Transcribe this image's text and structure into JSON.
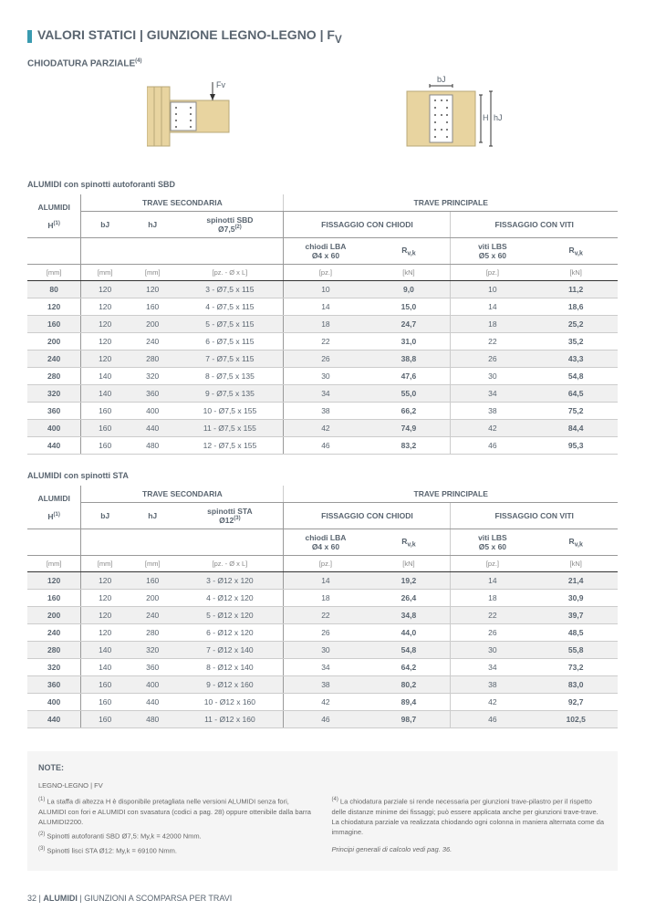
{
  "header": {
    "title": "VALORI STATICI | GIUNZIONE LEGNO-LEGNO | F",
    "title_sub": "V",
    "subtitle": "CHIODATURA PARZIALE",
    "subtitle_sup": "(4)"
  },
  "diagrams": {
    "left": {
      "fv_label": "Fv"
    },
    "right": {
      "bj_label": "bJ",
      "h_label": "H",
      "hj_label": "hJ"
    }
  },
  "table1": {
    "title": "ALUMIDI con spinotti autoforanti SBD",
    "headers": {
      "alumidi": "ALUMIDI",
      "trave_sec": "TRAVE SECONDARIA",
      "trave_prin": "TRAVE PRINCIPALE",
      "fiss_chiodi": "FISSAGGIO CON CHIODI",
      "fiss_viti": "FISSAGGIO CON VITI",
      "h": "H",
      "h_sup": "(1)",
      "bj": "bJ",
      "hj": "hJ",
      "spinotti": "spinotti SBD",
      "spinotti_dim": "Ø7,5",
      "spinotti_sup": "(2)",
      "chiodi": "chiodi LBA",
      "chiodi_dim": "Ø4 x 60",
      "rvk1": "R",
      "rvk1_sub": "v,k",
      "viti": "viti LBS",
      "viti_dim": "Ø5 x 60",
      "rvk2": "R",
      "rvk2_sub": "v,k",
      "u_mm": "[mm]",
      "u_pz_ol": "[pz. - Ø x L]",
      "u_pz": "[pz.]",
      "u_kn": "[kN]"
    },
    "rows": [
      {
        "h": "80",
        "bj": "120",
        "hj": "120",
        "sp": "3 - Ø7,5 x 115",
        "ch": "10",
        "r1": "9,0",
        "v": "10",
        "r2": "11,2",
        "alt": true
      },
      {
        "h": "120",
        "bj": "120",
        "hj": "160",
        "sp": "4 - Ø7,5 x 115",
        "ch": "14",
        "r1": "15,0",
        "v": "14",
        "r2": "18,6",
        "alt": false
      },
      {
        "h": "160",
        "bj": "120",
        "hj": "200",
        "sp": "5 - Ø7,5 x 115",
        "ch": "18",
        "r1": "24,7",
        "v": "18",
        "r2": "25,2",
        "alt": true
      },
      {
        "h": "200",
        "bj": "120",
        "hj": "240",
        "sp": "6 - Ø7,5 x 115",
        "ch": "22",
        "r1": "31,0",
        "v": "22",
        "r2": "35,2",
        "alt": false
      },
      {
        "h": "240",
        "bj": "120",
        "hj": "280",
        "sp": "7 - Ø7,5 x 115",
        "ch": "26",
        "r1": "38,8",
        "v": "26",
        "r2": "43,3",
        "alt": true
      },
      {
        "h": "280",
        "bj": "140",
        "hj": "320",
        "sp": "8 - Ø7,5 x 135",
        "ch": "30",
        "r1": "47,6",
        "v": "30",
        "r2": "54,8",
        "alt": false
      },
      {
        "h": "320",
        "bj": "140",
        "hj": "360",
        "sp": "9 - Ø7,5 x 135",
        "ch": "34",
        "r1": "55,0",
        "v": "34",
        "r2": "64,5",
        "alt": true
      },
      {
        "h": "360",
        "bj": "160",
        "hj": "400",
        "sp": "10 - Ø7,5 x 155",
        "ch": "38",
        "r1": "66,2",
        "v": "38",
        "r2": "75,2",
        "alt": false
      },
      {
        "h": "400",
        "bj": "160",
        "hj": "440",
        "sp": "11 - Ø7,5 x 155",
        "ch": "42",
        "r1": "74,9",
        "v": "42",
        "r2": "84,4",
        "alt": true
      },
      {
        "h": "440",
        "bj": "160",
        "hj": "480",
        "sp": "12 - Ø7,5 x 155",
        "ch": "46",
        "r1": "83,2",
        "v": "46",
        "r2": "95,3",
        "alt": false
      }
    ]
  },
  "table2": {
    "title": "ALUMIDI con spinotti STA",
    "headers": {
      "spinotti": "spinotti STA",
      "spinotti_dim": "Ø12",
      "spinotti_sup": "(3)"
    },
    "rows": [
      {
        "h": "120",
        "bj": "120",
        "hj": "160",
        "sp": "3 - Ø12 x 120",
        "ch": "14",
        "r1": "19,2",
        "v": "14",
        "r2": "21,4",
        "alt": true
      },
      {
        "h": "160",
        "bj": "120",
        "hj": "200",
        "sp": "4 - Ø12 x 120",
        "ch": "18",
        "r1": "26,4",
        "v": "18",
        "r2": "30,9",
        "alt": false
      },
      {
        "h": "200",
        "bj": "120",
        "hj": "240",
        "sp": "5 - Ø12 x 120",
        "ch": "22",
        "r1": "34,8",
        "v": "22",
        "r2": "39,7",
        "alt": true
      },
      {
        "h": "240",
        "bj": "120",
        "hj": "280",
        "sp": "6 - Ø12 x 120",
        "ch": "26",
        "r1": "44,0",
        "v": "26",
        "r2": "48,5",
        "alt": false
      },
      {
        "h": "280",
        "bj": "140",
        "hj": "320",
        "sp": "7 - Ø12 x 140",
        "ch": "30",
        "r1": "54,8",
        "v": "30",
        "r2": "55,8",
        "alt": true
      },
      {
        "h": "320",
        "bj": "140",
        "hj": "360",
        "sp": "8 - Ø12 x 140",
        "ch": "34",
        "r1": "64,2",
        "v": "34",
        "r2": "73,2",
        "alt": false
      },
      {
        "h": "360",
        "bj": "160",
        "hj": "400",
        "sp": "9 - Ø12 x 160",
        "ch": "38",
        "r1": "80,2",
        "v": "38",
        "r2": "83,0",
        "alt": true
      },
      {
        "h": "400",
        "bj": "160",
        "hj": "440",
        "sp": "10 - Ø12 x 160",
        "ch": "42",
        "r1": "89,4",
        "v": "42",
        "r2": "92,7",
        "alt": false
      },
      {
        "h": "440",
        "bj": "160",
        "hj": "480",
        "sp": "11 - Ø12 x 160",
        "ch": "46",
        "r1": "98,7",
        "v": "46",
        "r2": "102,5",
        "alt": true
      }
    ]
  },
  "notes": {
    "title": "NOTE:",
    "subtitle": "LEGNO-LEGNO | FV",
    "left": [
      {
        "sup": "(1)",
        "text": "La staffa di altezza H è disponibile pretagliata nelle versioni ALUMIDI senza fori, ALUMIDI con fori e ALUMIDI con svasatura (codici a pag. 28) oppure ottenibile dalla barra ALUMIDI2200."
      },
      {
        "sup": "(2)",
        "text": "Spinotti autoforanti SBD Ø7,5: My,k = 42000 Nmm."
      },
      {
        "sup": "(3)",
        "text": "Spinotti lisci STA Ø12: My,k = 69100 Nmm."
      }
    ],
    "right": [
      {
        "sup": "(4)",
        "text": "La chiodatura parziale si rende necessaria per giunzioni trave-pilastro per il rispetto delle distanze minime dei fissaggi; può essere applicata anche per giunzioni trave-trave. La chiodatura parziale va realizzata chiodando ogni colonna in maniera alternata come da immagine."
      }
    ],
    "footer_note": "Principi generali di calcolo vedi pag. 36."
  },
  "footer": {
    "page": "32",
    "sep": " | ",
    "product": "ALUMIDI",
    "sep2": " | ",
    "desc": "GIUNZIONI A SCOMPARSA PER TRAVI"
  }
}
